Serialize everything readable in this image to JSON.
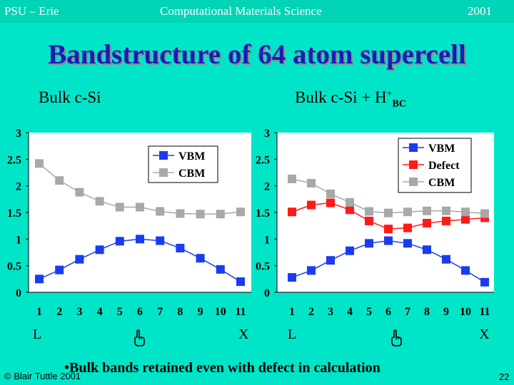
{
  "header": {
    "left": "PSU – Erie",
    "center": "Computational Materials Science",
    "right": "2001"
  },
  "title": "Bandstructure of 64 atom supercell",
  "panels": [
    {
      "label": "Bulk c-Si"
    },
    {
      "label_main": "Bulk c-Si + H",
      "label_sup": "+",
      "label_sub": "BC"
    }
  ],
  "point_labels": {
    "start": "L",
    "end": "X"
  },
  "bullet": "•Bulk bands retained even with defect in calculation",
  "footer": {
    "copyright": "© Blair Tuttle 2001",
    "page": "22"
  },
  "colors": {
    "vbm": "#1a3cf0",
    "defect": "#ff1a1a",
    "cbm": "#a8a8a8",
    "background": "#00e5c8",
    "title": "#1a1ab4"
  },
  "icons": {
    "hand": "pointing-hand-icon"
  },
  "chart_data": [
    {
      "type": "line",
      "x": [
        1,
        2,
        3,
        4,
        5,
        6,
        7,
        8,
        9,
        10,
        11
      ],
      "ylim": [
        0,
        3
      ],
      "yticks": [
        "0",
        "0.5",
        "1",
        "1.5",
        "2",
        "2.5",
        "3"
      ],
      "legend_position": "top-right",
      "series": [
        {
          "name": "VBM",
          "color": "#1a3cf0",
          "values": [
            0.25,
            0.42,
            0.62,
            0.8,
            0.96,
            1.0,
            0.97,
            0.83,
            0.64,
            0.43,
            0.2
          ]
        },
        {
          "name": "CBM",
          "color": "#a8a8a8",
          "values": [
            2.42,
            2.1,
            1.88,
            1.71,
            1.6,
            1.6,
            1.52,
            1.48,
            1.47,
            1.47,
            1.51
          ]
        }
      ]
    },
    {
      "type": "line",
      "x": [
        1,
        2,
        3,
        4,
        5,
        6,
        7,
        8,
        9,
        10,
        11
      ],
      "ylim": [
        0,
        3
      ],
      "yticks": [
        "0",
        "0.5",
        "1",
        "1.5",
        "2",
        "2.5",
        "3"
      ],
      "legend_position": "top-right",
      "series": [
        {
          "name": "VBM",
          "color": "#1a3cf0",
          "values": [
            0.28,
            0.41,
            0.6,
            0.78,
            0.92,
            0.97,
            0.92,
            0.8,
            0.62,
            0.41,
            0.19
          ]
        },
        {
          "name": "Defect",
          "color": "#ff1a1a",
          "values": [
            1.51,
            1.64,
            1.68,
            1.55,
            1.34,
            1.19,
            1.21,
            1.3,
            1.34,
            1.37,
            1.4
          ]
        },
        {
          "name": "CBM",
          "color": "#a8a8a8",
          "values": [
            2.13,
            2.05,
            1.85,
            1.69,
            1.52,
            1.49,
            1.51,
            1.53,
            1.53,
            1.51,
            1.48
          ]
        }
      ]
    }
  ]
}
